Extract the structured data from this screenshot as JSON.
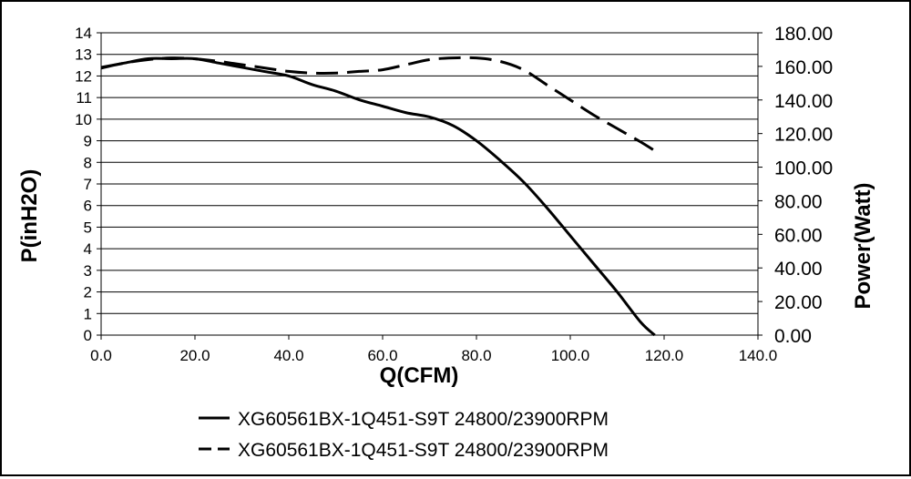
{
  "chart_data": {
    "type": "line",
    "title": "",
    "xlabel": "Q(CFM)",
    "ylabel": "P(inH2O)",
    "y2label": "Power(Watt)",
    "xlim": [
      0,
      140
    ],
    "ylim": [
      0,
      14
    ],
    "y2lim": [
      0,
      180
    ],
    "x_ticks": [
      "0.0",
      "20.0",
      "40.0",
      "60.0",
      "80.0",
      "100.0",
      "120.0",
      "140.0"
    ],
    "y_ticks": [
      "0",
      "1",
      "2",
      "3",
      "4",
      "5",
      "6",
      "7",
      "8",
      "9",
      "10",
      "11",
      "12",
      "13",
      "14"
    ],
    "y2_ticks": [
      "0.00",
      "20.00",
      "40.00",
      "60.00",
      "80.00",
      "100.00",
      "120.00",
      "140.00",
      "160.00",
      "180.00"
    ],
    "grid": "horizontal",
    "legend_position": "bottom",
    "series": [
      {
        "name": "XG60561BX-1Q451-S9T 24800/23900RPM",
        "axis": "left",
        "style": "solid",
        "color": "#000000",
        "x": [
          0,
          5,
          10,
          15,
          20,
          25,
          30,
          35,
          40,
          45,
          50,
          55,
          60,
          65,
          70,
          75,
          80,
          85,
          90,
          95,
          100,
          105,
          110,
          115,
          118
        ],
        "y": [
          12.4,
          12.6,
          12.8,
          12.8,
          12.8,
          12.6,
          12.4,
          12.2,
          12.0,
          11.6,
          11.3,
          10.9,
          10.6,
          10.3,
          10.1,
          9.7,
          9.0,
          8.1,
          7.1,
          5.9,
          4.6,
          3.3,
          2.0,
          0.6,
          0.0
        ]
      },
      {
        "name": "XG60561BX-1Q451-S9T 24800/23900RPM",
        "axis": "right",
        "style": "dashed",
        "color": "#000000",
        "x": [
          0,
          5,
          10,
          15,
          20,
          25,
          30,
          35,
          40,
          45,
          50,
          55,
          60,
          65,
          70,
          75,
          80,
          85,
          90,
          95,
          100,
          105,
          110,
          115,
          119
        ],
        "y": [
          159,
          162,
          164,
          165,
          164.5,
          163,
          161,
          159,
          157,
          156,
          156,
          157,
          158,
          161,
          164,
          165,
          165,
          163,
          158,
          149,
          140,
          131,
          123,
          115,
          108
        ]
      }
    ]
  }
}
